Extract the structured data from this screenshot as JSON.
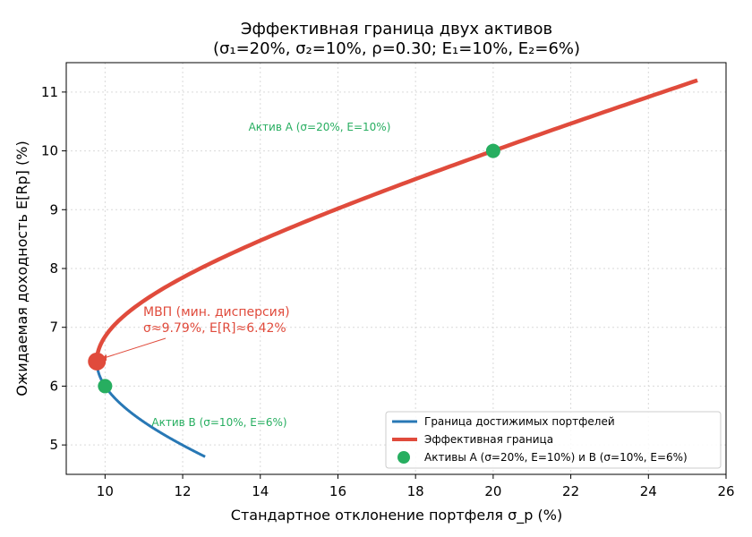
{
  "chart_data": {
    "type": "line",
    "title": "Эффективная граница двух активов",
    "subtitle": "(σ₁=20%, σ₂=10%, ρ=0.30; E₁=10%, E₂=6%)",
    "xlabel": "Стандартное отклонение портфеля σ_p (%)",
    "ylabel": "Ожидаемая доходность E[Rp] (%)",
    "xlim": [
      9,
      26
    ],
    "ylim": [
      4.5,
      11.5
    ],
    "xticks": [
      10,
      12,
      14,
      16,
      18,
      20,
      22,
      24,
      26
    ],
    "yticks": [
      5,
      6,
      7,
      8,
      9,
      10,
      11
    ],
    "grid": true,
    "legend_position": "lower-right",
    "assets": {
      "E1": 10,
      "E2": 6,
      "sigma1": 20,
      "sigma2": 10,
      "rho": 0.3,
      "feasible_E_range": [
        4.8,
        6.42
      ],
      "efficient_E_range": [
        6.42,
        11.2
      ]
    },
    "series": [
      {
        "name": "Граница достижимых портфелей",
        "color": "#2878b5",
        "kind": "feasible"
      },
      {
        "name": "Эффективная граница",
        "color": "#e04b3c",
        "kind": "efficient"
      },
      {
        "name": "Активы A (σ=20%, E=10%) и B (σ=10%, E=6%)",
        "color": "#27ae60",
        "kind": "assets"
      }
    ],
    "points": {
      "asset_A": {
        "x": 20,
        "y": 10,
        "label": "Актив A (σ=20%, E=10%)"
      },
      "asset_B": {
        "x": 10,
        "y": 6,
        "label": "Актив B (σ=10%, E=6%)"
      },
      "mvp": {
        "x": 9.79,
        "y": 6.42,
        "label_line1": "МВП (мин. дисперсия)",
        "label_line2": "σ≈9.79%, E[R]≈6.42%"
      }
    },
    "colors": {
      "asset": "#27ae60",
      "mvp": "#e04b3c",
      "feasible": "#2878b5",
      "efficient": "#e04b3c"
    }
  }
}
